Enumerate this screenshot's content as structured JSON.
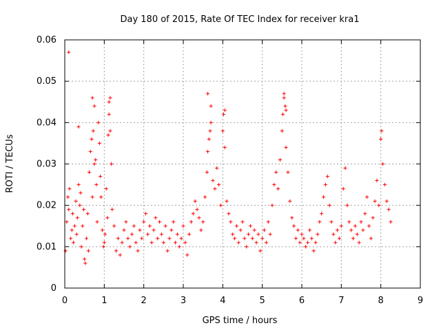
{
  "chart_data": {
    "type": "scatter",
    "title": "Day 180 of 2015, Rate Of TEC Index for receiver kra1",
    "xlabel": "GPS time / hours",
    "ylabel": "ROTI / TECUs",
    "xlim": [
      0,
      9
    ],
    "ylim": [
      0,
      0.06
    ],
    "xticks": [
      "0",
      "1",
      "2",
      "3",
      "4",
      "5",
      "6",
      "7",
      "8",
      "9"
    ],
    "yticks": [
      "0",
      "0.01",
      "0.02",
      "0.03",
      "0.04",
      "0.05",
      "0.06"
    ],
    "grid": true,
    "marker": "+",
    "color": "#ff0000",
    "series": [
      {
        "name": "ROTI",
        "x": [
          0.02,
          0.05,
          0.08,
          0.1,
          0.12,
          0.15,
          0.18,
          0.2,
          0.22,
          0.25,
          0.28,
          0.3,
          0.32,
          0.35,
          0.38,
          0.4,
          0.42,
          0.45,
          0.48,
          0.5,
          0.52,
          0.55,
          0.58,
          0.6,
          0.62,
          0.65,
          0.68,
          0.7,
          0.72,
          0.75,
          0.78,
          0.8,
          0.82,
          0.85,
          0.88,
          0.9,
          0.92,
          0.95,
          0.98,
          1.0,
          1.02,
          1.05,
          1.08,
          1.1,
          1.12,
          1.15,
          1.18,
          1.2,
          1.25,
          1.3,
          1.35,
          1.4,
          1.45,
          1.5,
          1.55,
          1.6,
          1.65,
          1.7,
          1.75,
          1.8,
          1.85,
          1.9,
          1.95,
          2.0,
          2.05,
          2.1,
          2.15,
          2.2,
          2.25,
          2.3,
          2.35,
          2.4,
          2.45,
          2.5,
          2.55,
          2.6,
          2.65,
          2.7,
          2.75,
          2.8,
          2.85,
          2.9,
          2.95,
          3.0,
          3.05,
          3.1,
          3.15,
          3.2,
          3.25,
          3.3,
          3.35,
          3.4,
          3.45,
          3.5,
          3.55,
          3.6,
          3.62,
          3.65,
          3.68,
          3.7,
          3.75,
          3.8,
          3.85,
          3.9,
          3.95,
          4.0,
          4.02,
          4.05,
          4.1,
          4.15,
          4.2,
          4.25,
          4.3,
          4.35,
          4.4,
          4.45,
          4.5,
          4.55,
          4.6,
          4.65,
          4.7,
          4.75,
          4.8,
          4.85,
          4.9,
          4.95,
          5.0,
          5.05,
          5.1,
          5.15,
          5.2,
          5.25,
          5.3,
          5.35,
          5.4,
          5.45,
          5.5,
          5.52,
          5.55,
          5.58,
          5.6,
          5.65,
          5.7,
          5.75,
          5.8,
          5.85,
          5.9,
          5.95,
          6.0,
          6.05,
          6.1,
          6.15,
          6.2,
          6.25,
          6.3,
          6.35,
          6.4,
          6.45,
          6.5,
          6.55,
          6.6,
          6.65,
          6.7,
          6.75,
          6.8,
          6.85,
          6.9,
          6.95,
          7.0,
          7.05,
          7.1,
          7.15,
          7.2,
          7.25,
          7.3,
          7.35,
          7.4,
          7.45,
          7.5,
          7.55,
          7.6,
          7.65,
          7.7,
          7.75,
          7.8,
          7.85,
          7.9,
          7.95,
          8.0,
          8.02,
          8.05,
          8.1,
          8.15,
          8.2,
          8.25,
          0.1,
          0.35,
          0.7,
          0.75,
          1.15,
          1.12,
          3.62,
          3.7,
          4.05,
          5.55,
          5.6
        ],
        "y": [
          0.009,
          0.016,
          0.022,
          0.019,
          0.024,
          0.012,
          0.014,
          0.018,
          0.011,
          0.015,
          0.021,
          0.013,
          0.017,
          0.025,
          0.02,
          0.023,
          0.01,
          0.015,
          0.019,
          0.007,
          0.006,
          0.012,
          0.018,
          0.009,
          0.028,
          0.033,
          0.036,
          0.022,
          0.038,
          0.03,
          0.031,
          0.025,
          0.016,
          0.04,
          0.035,
          0.027,
          0.022,
          0.014,
          0.01,
          0.011,
          0.013,
          0.024,
          0.017,
          0.037,
          0.042,
          0.038,
          0.03,
          0.019,
          0.015,
          0.009,
          0.012,
          0.008,
          0.011,
          0.014,
          0.016,
          0.012,
          0.01,
          0.013,
          0.015,
          0.011,
          0.009,
          0.014,
          0.012,
          0.016,
          0.018,
          0.013,
          0.015,
          0.011,
          0.014,
          0.017,
          0.012,
          0.016,
          0.013,
          0.011,
          0.015,
          0.009,
          0.012,
          0.014,
          0.016,
          0.011,
          0.013,
          0.01,
          0.012,
          0.015,
          0.011,
          0.008,
          0.013,
          0.016,
          0.018,
          0.021,
          0.019,
          0.017,
          0.014,
          0.016,
          0.022,
          0.028,
          0.033,
          0.036,
          0.038,
          0.04,
          0.026,
          0.024,
          0.029,
          0.025,
          0.02,
          0.038,
          0.042,
          0.034,
          0.021,
          0.018,
          0.016,
          0.013,
          0.012,
          0.015,
          0.011,
          0.014,
          0.016,
          0.012,
          0.01,
          0.013,
          0.015,
          0.012,
          0.014,
          0.011,
          0.013,
          0.009,
          0.012,
          0.014,
          0.011,
          0.016,
          0.013,
          0.02,
          0.025,
          0.028,
          0.024,
          0.031,
          0.038,
          0.042,
          0.046,
          0.044,
          0.034,
          0.028,
          0.021,
          0.017,
          0.015,
          0.012,
          0.014,
          0.011,
          0.013,
          0.012,
          0.01,
          0.011,
          0.014,
          0.012,
          0.009,
          0.011,
          0.013,
          0.016,
          0.018,
          0.022,
          0.025,
          0.027,
          0.02,
          0.016,
          0.013,
          0.011,
          0.014,
          0.012,
          0.015,
          0.024,
          0.029,
          0.02,
          0.016,
          0.014,
          0.012,
          0.015,
          0.013,
          0.011,
          0.016,
          0.014,
          0.018,
          0.022,
          0.015,
          0.012,
          0.017,
          0.021,
          0.026,
          0.02,
          0.036,
          0.038,
          0.03,
          0.025,
          0.021,
          0.019,
          0.016,
          0.057,
          0.039,
          0.046,
          0.044,
          0.046,
          0.045,
          0.047,
          0.044,
          0.043,
          0.047,
          0.043
        ]
      }
    ]
  }
}
